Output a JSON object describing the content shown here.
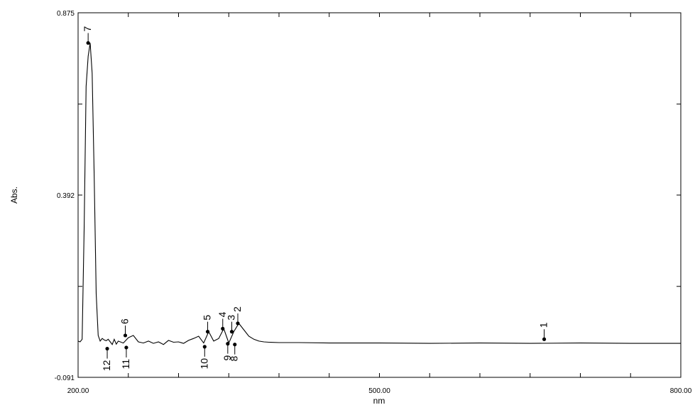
{
  "chart_data": {
    "type": "line",
    "title": "",
    "xlabel": "nm",
    "ylabel": "Abs.",
    "xlim": [
      200.0,
      800.0
    ],
    "ylim": [
      -0.091,
      0.875
    ],
    "x_tick_labels": [
      {
        "value": 200,
        "label": "200.00"
      },
      {
        "value": 500,
        "label": "500.00"
      },
      {
        "value": 800,
        "label": "800.00"
      }
    ],
    "y_tick_labels": [
      {
        "value": -0.091,
        "label": "-0.091"
      },
      {
        "value": 0.392,
        "label": "0.392"
      },
      {
        "value": 0.875,
        "label": "0.875"
      }
    ],
    "x_minor_ticks": [
      250,
      300,
      350,
      400,
      450,
      550,
      600,
      650,
      700,
      750
    ],
    "y_minor_ticks": [
      0.15,
      0.633
    ],
    "grid": false,
    "series": [
      {
        "color": "#000000",
        "x": [
          200,
          202,
          204,
          206,
          208,
          210,
          212,
          214,
          216,
          218,
          220,
          222,
          224,
          226,
          228,
          230,
          232,
          234,
          236,
          238,
          240,
          245,
          250,
          255,
          260,
          265,
          270,
          275,
          280,
          285,
          290,
          295,
          300,
          305,
          310,
          315,
          320,
          325,
          330,
          335,
          340,
          345,
          350,
          355,
          360,
          365,
          370,
          375,
          380,
          385,
          390,
          400,
          420,
          450,
          500,
          550,
          600,
          650,
          700,
          750,
          800
        ],
        "y": [
          0.005,
          0.003,
          0.01,
          0.3,
          0.68,
          0.76,
          0.795,
          0.715,
          0.45,
          0.13,
          0.02,
          0.005,
          0.012,
          0.008,
          0.006,
          0.01,
          0.003,
          -0.004,
          0.01,
          -0.003,
          0.005,
          0.0,
          0.014,
          0.02,
          0.003,
          0.0,
          0.005,
          -0.001,
          0.003,
          -0.004,
          0.007,
          0.002,
          0.003,
          -0.001,
          0.007,
          0.012,
          0.018,
          0.0,
          0.03,
          0.005,
          0.012,
          0.038,
          0.0,
          0.03,
          0.052,
          0.035,
          0.018,
          0.01,
          0.005,
          0.003,
          0.002,
          0.001,
          0.001,
          0.0,
          0.0,
          -0.001,
          0.0,
          -0.001,
          0.0,
          -0.001,
          -0.001
        ]
      }
    ],
    "peak_markers": [
      {
        "label": "1",
        "x": 664,
        "y": 0.01,
        "direction": "up"
      },
      {
        "label": "2",
        "x": 359,
        "y": 0.052,
        "direction": "up"
      },
      {
        "label": "3",
        "x": 353,
        "y": 0.03,
        "direction": "up"
      },
      {
        "label": "4",
        "x": 344,
        "y": 0.038,
        "direction": "up"
      },
      {
        "label": "5",
        "x": 329,
        "y": 0.03,
        "direction": "up"
      },
      {
        "label": "6",
        "x": 247,
        "y": 0.02,
        "direction": "up"
      },
      {
        "label": "7",
        "x": 210,
        "y": 0.795,
        "direction": "up"
      },
      {
        "label": "8",
        "x": 356,
        "y": -0.004,
        "direction": "down"
      },
      {
        "label": "9",
        "x": 349,
        "y": -0.002,
        "direction": "down"
      },
      {
        "label": "10",
        "x": 326,
        "y": -0.01,
        "direction": "down"
      },
      {
        "label": "11",
        "x": 248,
        "y": -0.012,
        "direction": "down"
      },
      {
        "label": "12",
        "x": 229,
        "y": -0.015,
        "direction": "down"
      }
    ]
  }
}
